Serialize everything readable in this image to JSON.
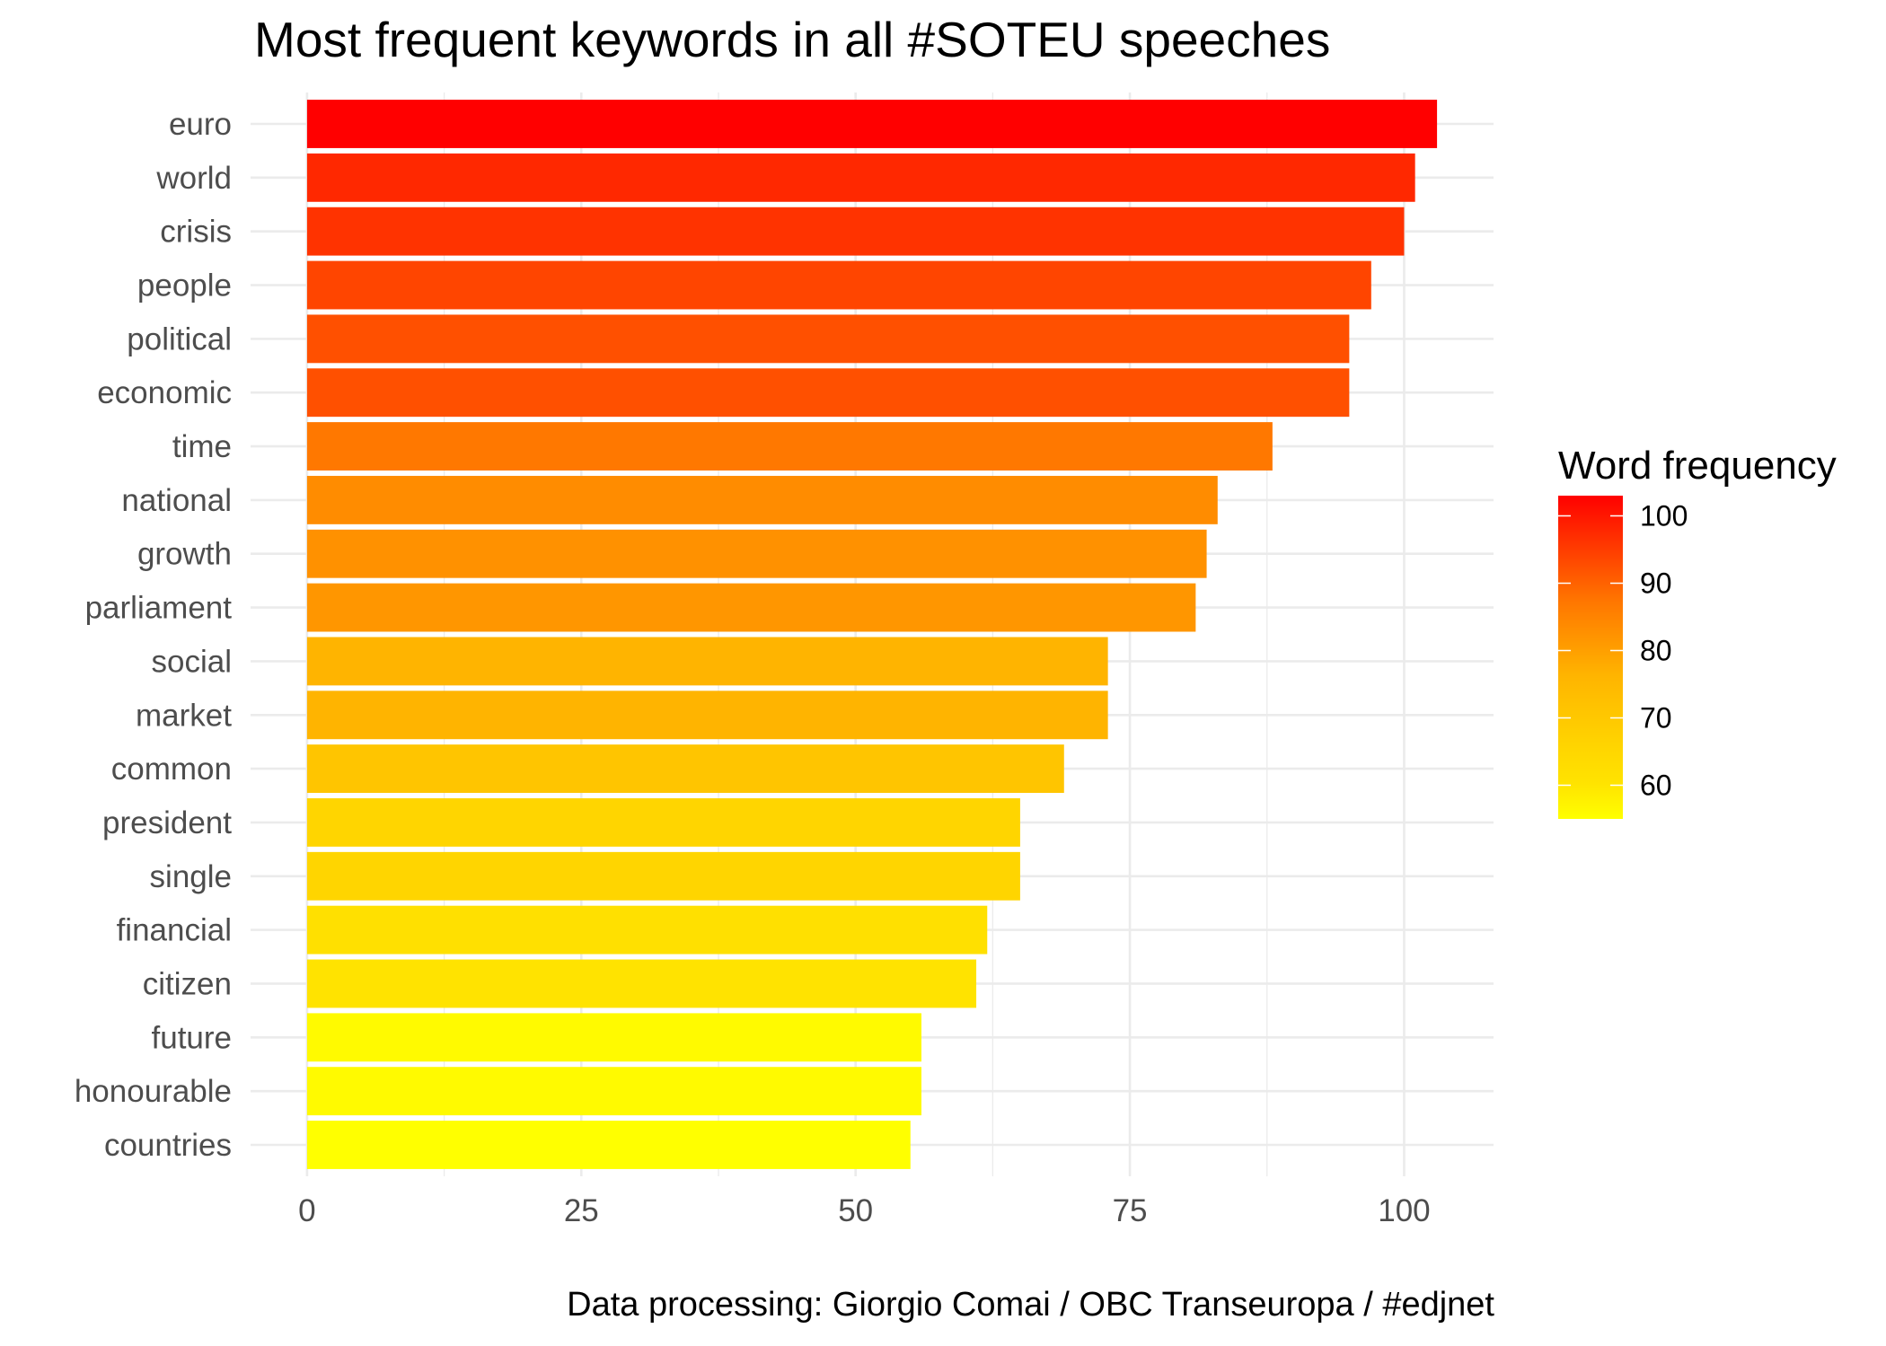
{
  "chart_data": {
    "type": "bar",
    "orientation": "horizontal",
    "title": "Most frequent keywords in all #SOTEU speeches",
    "caption": "Data processing:  Giorgio Comai / OBC Transeuropa / #edjnet",
    "xlabel": "",
    "ylabel": "",
    "xlim": [
      -5.15,
      108.15
    ],
    "x_ticks": [
      0,
      25,
      50,
      75,
      100
    ],
    "x_tick_labels": [
      "0",
      "25",
      "50",
      "75",
      "100"
    ],
    "x_minor_ticks": [
      12.5,
      37.5,
      62.5,
      87.5
    ],
    "grid": true,
    "categories": [
      "euro",
      "world",
      "crisis",
      "people",
      "political",
      "economic",
      "time",
      "national",
      "growth",
      "parliament",
      "social",
      "market",
      "common",
      "president",
      "single",
      "financial",
      "citizen",
      "future",
      "honourable",
      "countries"
    ],
    "values": [
      103,
      101,
      100,
      97,
      95,
      95,
      88,
      83,
      82,
      81,
      73,
      73,
      69,
      65,
      65,
      62,
      61,
      56,
      56,
      55
    ],
    "bar_colors": [
      "#FF0000",
      "#FF2800",
      "#FF3300",
      "#FF4500",
      "#FF5000",
      "#FF5000",
      "#FF7800",
      "#FF8C00",
      "#FF9100",
      "#FF9600",
      "#FFB400",
      "#FFB400",
      "#FFC500",
      "#FFD500",
      "#FFD500",
      "#FFE000",
      "#FFE300",
      "#FFFA00",
      "#FFFA00",
      "#FFFF00"
    ],
    "legend": {
      "title": "Word frequency",
      "type": "colorbar",
      "position": "right",
      "limits": [
        55,
        103
      ],
      "breaks": [
        100,
        90,
        80,
        70,
        60
      ],
      "break_labels": [
        "100",
        "90",
        "80",
        "70",
        "60"
      ],
      "low_color": "#FFFF00",
      "high_color": "#FF0000",
      "gradient_stops": [
        "#FF0000",
        "#FF2800",
        "#FF5000",
        "#FF7800",
        "#FF9600",
        "#FFB400",
        "#FFC500",
        "#FFD500",
        "#FFE300",
        "#FFFF00"
      ]
    },
    "colors": {
      "gridline": "#EBEBEB",
      "axis_text": "#4D4D4D",
      "text": "#000000",
      "background": "#FFFFFF"
    }
  }
}
